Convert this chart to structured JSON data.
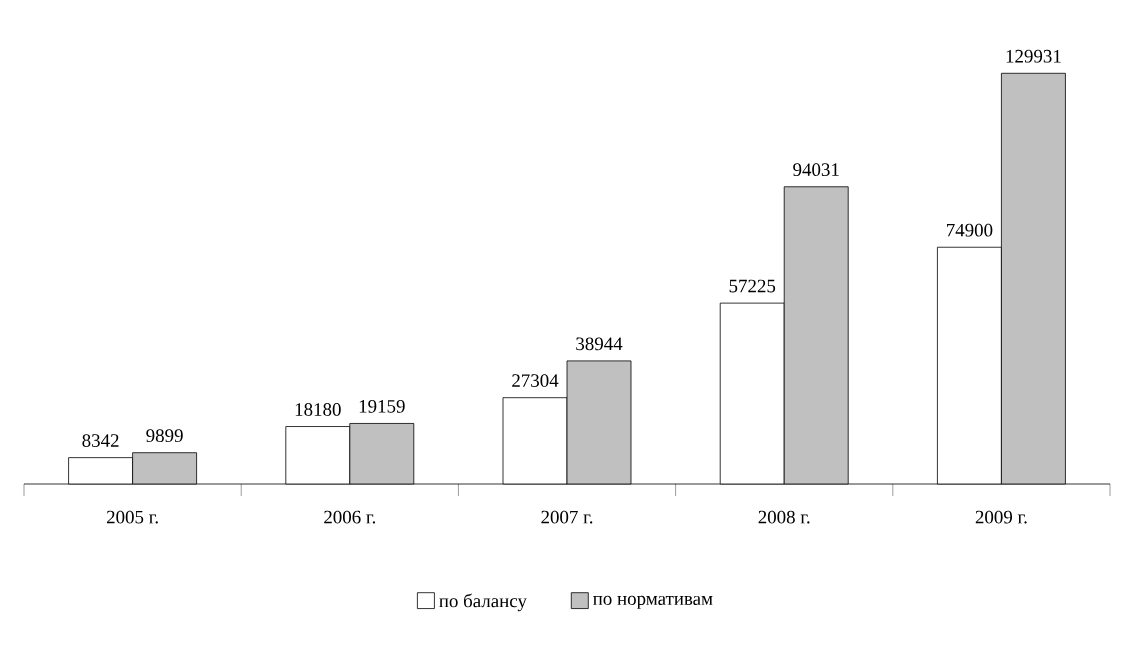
{
  "chart_data": {
    "type": "bar",
    "categories": [
      "2005 г.",
      "2006 г.",
      "2007 г.",
      "2008 г.",
      "2009 г."
    ],
    "series": [
      {
        "name": "по балансу",
        "color": "#ffffff",
        "values": [
          8342,
          18180,
          27304,
          57225,
          74900
        ]
      },
      {
        "name": "по нормативам",
        "color": "#c0c0c0",
        "values": [
          9899,
          19159,
          38944,
          94031,
          129931
        ]
      }
    ],
    "data_labels": true,
    "legend": "bottom"
  }
}
